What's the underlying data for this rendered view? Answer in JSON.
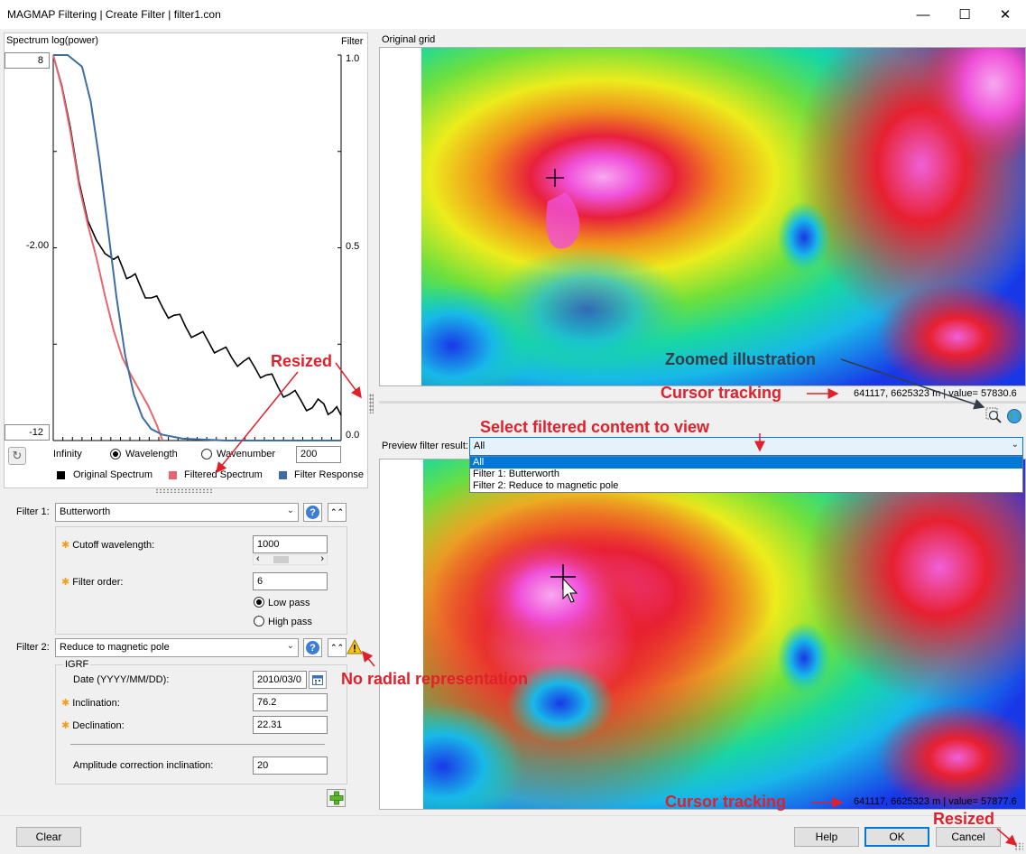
{
  "window": {
    "title": "MAGMAP Filtering | Create Filter | filter1.con",
    "minimize": "—",
    "maximize": "☐",
    "close": "✕"
  },
  "spectrum": {
    "title_left": "Spectrum log(power)",
    "title_right": "Filter",
    "y_top": "8",
    "y_mid": "-2.00",
    "y_bottom": "-12",
    "right_ticks": [
      "1.0",
      "0.5",
      "0.0"
    ],
    "x_left": "Infinity",
    "x_right_value": "200",
    "axis_mode": {
      "wavelength": "Wavelength",
      "wavenumber": "Wavenumber",
      "selected": "wavelength"
    },
    "legend": [
      {
        "label": "Original Spectrum",
        "color": "#000000"
      },
      {
        "label": "Filtered Spectrum",
        "color": "#e8656f"
      },
      {
        "label": "Filter Response",
        "color": "#3e6da3"
      }
    ],
    "reset_icon": "undo-icon"
  },
  "chart_data": {
    "type": "line",
    "xlabel": "",
    "ylabel": "Spectrum log(power)",
    "y2label": "Filter",
    "ylim": [
      -12,
      8
    ],
    "y2lim": [
      0.0,
      1.0
    ],
    "series": [
      {
        "name": "Original Spectrum",
        "color": "#000000",
        "axis": "left",
        "x": [
          0,
          0.03,
          0.06,
          0.09,
          0.12,
          0.15,
          0.18,
          0.21,
          0.24,
          0.27,
          0.3,
          0.34,
          0.38,
          0.42,
          0.46,
          0.5,
          0.54,
          0.58,
          0.62,
          0.66,
          0.7,
          0.74,
          0.78,
          0.82,
          0.86,
          0.9,
          0.94,
          0.97,
          1.0
        ],
        "y": [
          8,
          6.4,
          4.2,
          1.4,
          -0.6,
          -1.6,
          -2.3,
          -2.6,
          -3.0,
          -3.5,
          -3.9,
          -4.6,
          -5.1,
          -5.5,
          -6.1,
          -6.5,
          -6.9,
          -7.3,
          -7.7,
          -7.9,
          -8.2,
          -8.6,
          -9.2,
          -9.6,
          -9.9,
          -10.3,
          -10.1,
          -10.5,
          -10.7
        ]
      },
      {
        "name": "Filtered Spectrum",
        "color": "#e8656f",
        "axis": "left",
        "x": [
          0,
          0.03,
          0.06,
          0.09,
          0.12,
          0.15,
          0.18,
          0.21,
          0.24,
          0.27,
          0.3,
          0.33,
          0.36,
          0.38
        ],
        "y": [
          8,
          6.3,
          4.0,
          1.2,
          -0.8,
          -2.5,
          -4.5,
          -6.3,
          -7.7,
          -8.6,
          -9.4,
          -10.2,
          -11.2,
          -12
        ]
      },
      {
        "name": "Filter Response",
        "color": "#3e6da3",
        "axis": "right",
        "x": [
          0,
          0.05,
          0.1,
          0.13,
          0.16,
          0.19,
          0.22,
          0.25,
          0.28,
          0.31,
          0.34,
          0.38,
          0.45,
          0.6,
          0.8,
          1.0
        ],
        "y": [
          1.0,
          1.0,
          0.97,
          0.88,
          0.73,
          0.55,
          0.37,
          0.22,
          0.12,
          0.06,
          0.03,
          0.015,
          0.005,
          0.0,
          0.0,
          0.0
        ]
      }
    ]
  },
  "filter1": {
    "label": "Filter 1:",
    "type": "Butterworth",
    "cutoff_label": "Cutoff wavelength:",
    "cutoff_value": "1000",
    "order_label": "Filter order:",
    "order_value": "6",
    "low_pass": "Low pass",
    "high_pass": "High pass",
    "pass_selected": "low",
    "help_icon": "help-icon",
    "collapse_icon": "collapse-up-icon"
  },
  "filter2": {
    "label": "Filter 2:",
    "type": "Reduce to magnetic pole",
    "group": "IGRF",
    "date_label": "Date (YYYY/MM/DD):",
    "date_value": "2010/03/0",
    "inclination_label": "Inclination:",
    "inclination_value": "76.2",
    "declination_label": "Declination:",
    "declination_value": "22.31",
    "amp_label": "Amplitude correction inclination:",
    "amp_value": "20",
    "warning_icon": "warning-icon",
    "calendar_icon": "calendar-icon"
  },
  "add_filter_icon": "add-plus-icon",
  "original": {
    "title": "Original grid",
    "status": "641117, 6625323 m |  value= 57830.6",
    "zoom_icon": "zoom-magnifier-icon",
    "globe_icon": "globe-icon"
  },
  "preview": {
    "label": "Preview filter result:",
    "selected": "All",
    "options": [
      "All",
      "Filter 1: Butterworth",
      "Filter 2: Reduce to magnetic pole"
    ],
    "status": "641117, 6625323 m |  value= 57877.6"
  },
  "buttons": {
    "clear": "Clear",
    "help": "Help",
    "ok": "OK",
    "cancel": "Cancel"
  },
  "annotations": {
    "resized_top": "Resized",
    "zoomed": "Zoomed illustration",
    "cursor_tracking_top": "Cursor tracking",
    "select_filtered": "Select filtered content to view",
    "no_radial": "No radial representation",
    "cursor_tracking_bottom": "Cursor tracking",
    "resized_bottom": "Resized"
  },
  "colors": {
    "accent": "#0078d7",
    "annotation": "#e0202a",
    "annotation_dark": "#333c48"
  }
}
